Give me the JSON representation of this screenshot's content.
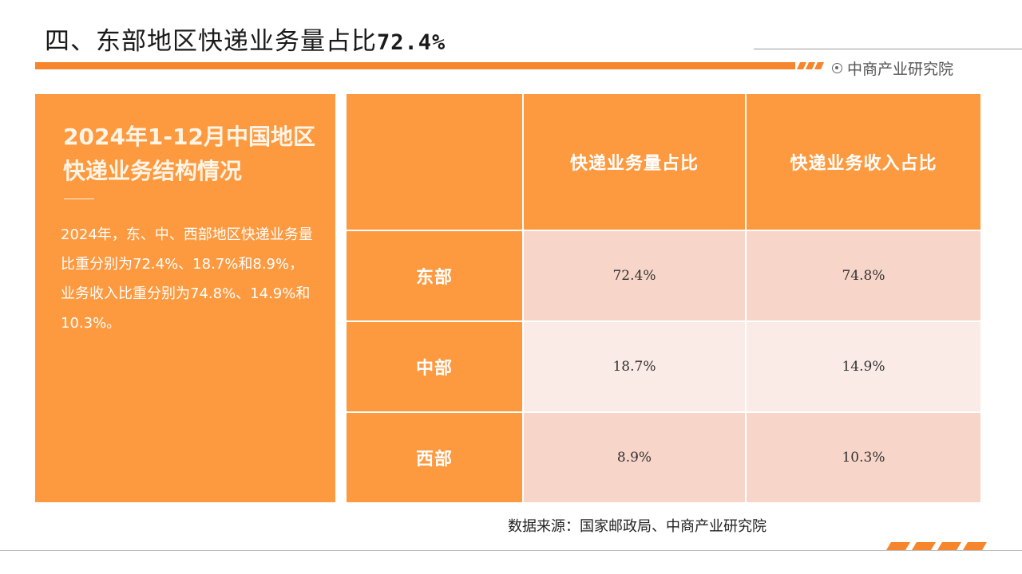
{
  "header": {
    "title_text": "四、东部地区快递业务量占比",
    "title_num": "72.4%",
    "brand": "中商产业研究院",
    "brand_icon": "target-icon",
    "accent_color": "#f7852b"
  },
  "summary": {
    "heading": "2024年1-12月中国地区快递业务结构情况",
    "body": "2024年，东、中、西部地区快递业务量比重分别为72.4%、18.7%和8.9%，业务收入比重分别为74.8%、14.9%和10.3%。"
  },
  "table": {
    "columns": [
      "",
      "快递业务量占比",
      "快递业务收入占比"
    ],
    "rows": [
      {
        "region": "东部",
        "volume_share": "72.4%",
        "revenue_share": "74.8%"
      },
      {
        "region": "中部",
        "volume_share": "18.7%",
        "revenue_share": "14.9%"
      },
      {
        "region": "西部",
        "volume_share": "8.9%",
        "revenue_share": "10.3%"
      }
    ]
  },
  "footer": {
    "source": "数据来源：国家邮政局、中商产业研究院"
  }
}
